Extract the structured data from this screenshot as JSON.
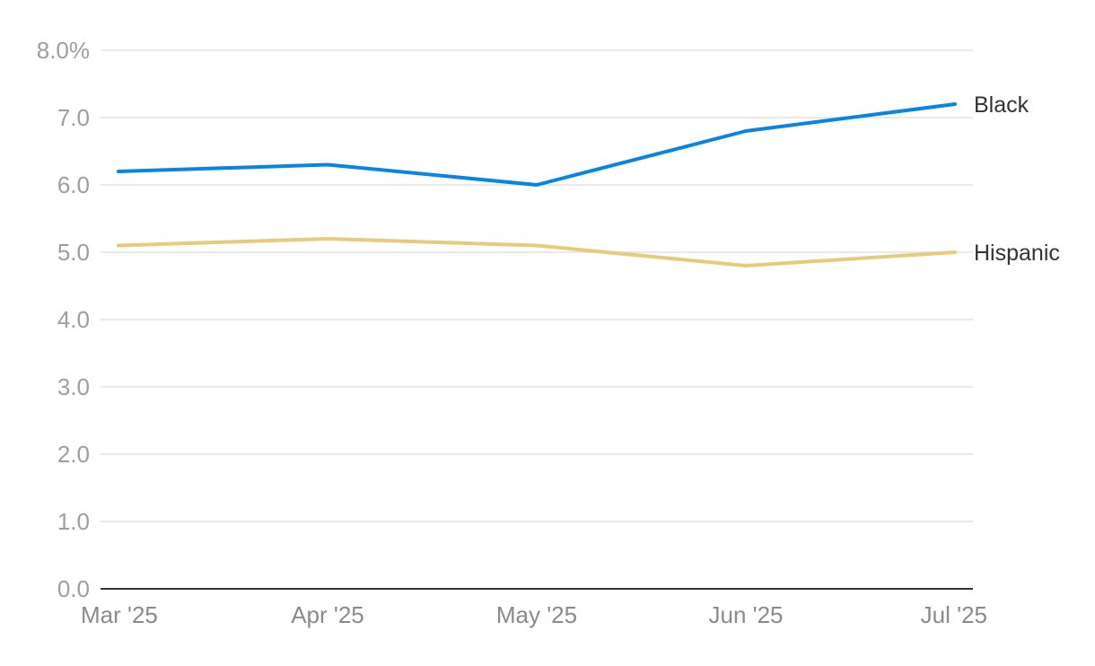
{
  "chart_data": {
    "type": "line",
    "categories": [
      "Mar '25",
      "Apr '25",
      "May '25",
      "Jun '25",
      "Jul '25"
    ],
    "series": [
      {
        "name": "Black",
        "values": [
          6.2,
          6.3,
          6.0,
          6.8,
          7.2
        ],
        "color": "#0a84e3"
      },
      {
        "name": "Hispanic",
        "values": [
          5.1,
          5.2,
          5.1,
          4.8,
          5.0
        ],
        "color": "#e6cb7c"
      }
    ],
    "yticks": [
      0,
      1,
      2,
      3,
      4,
      5,
      6,
      7,
      8
    ],
    "ytick_labels": [
      "0.0",
      "1.0",
      "2.0",
      "3.0",
      "4.0",
      "5.0",
      "6.0",
      "7.0",
      "8.0%"
    ],
    "ylim": [
      0,
      8
    ],
    "title": "",
    "xlabel": "",
    "ylabel": "",
    "grid": true,
    "legend": "direct labels at line ends"
  }
}
